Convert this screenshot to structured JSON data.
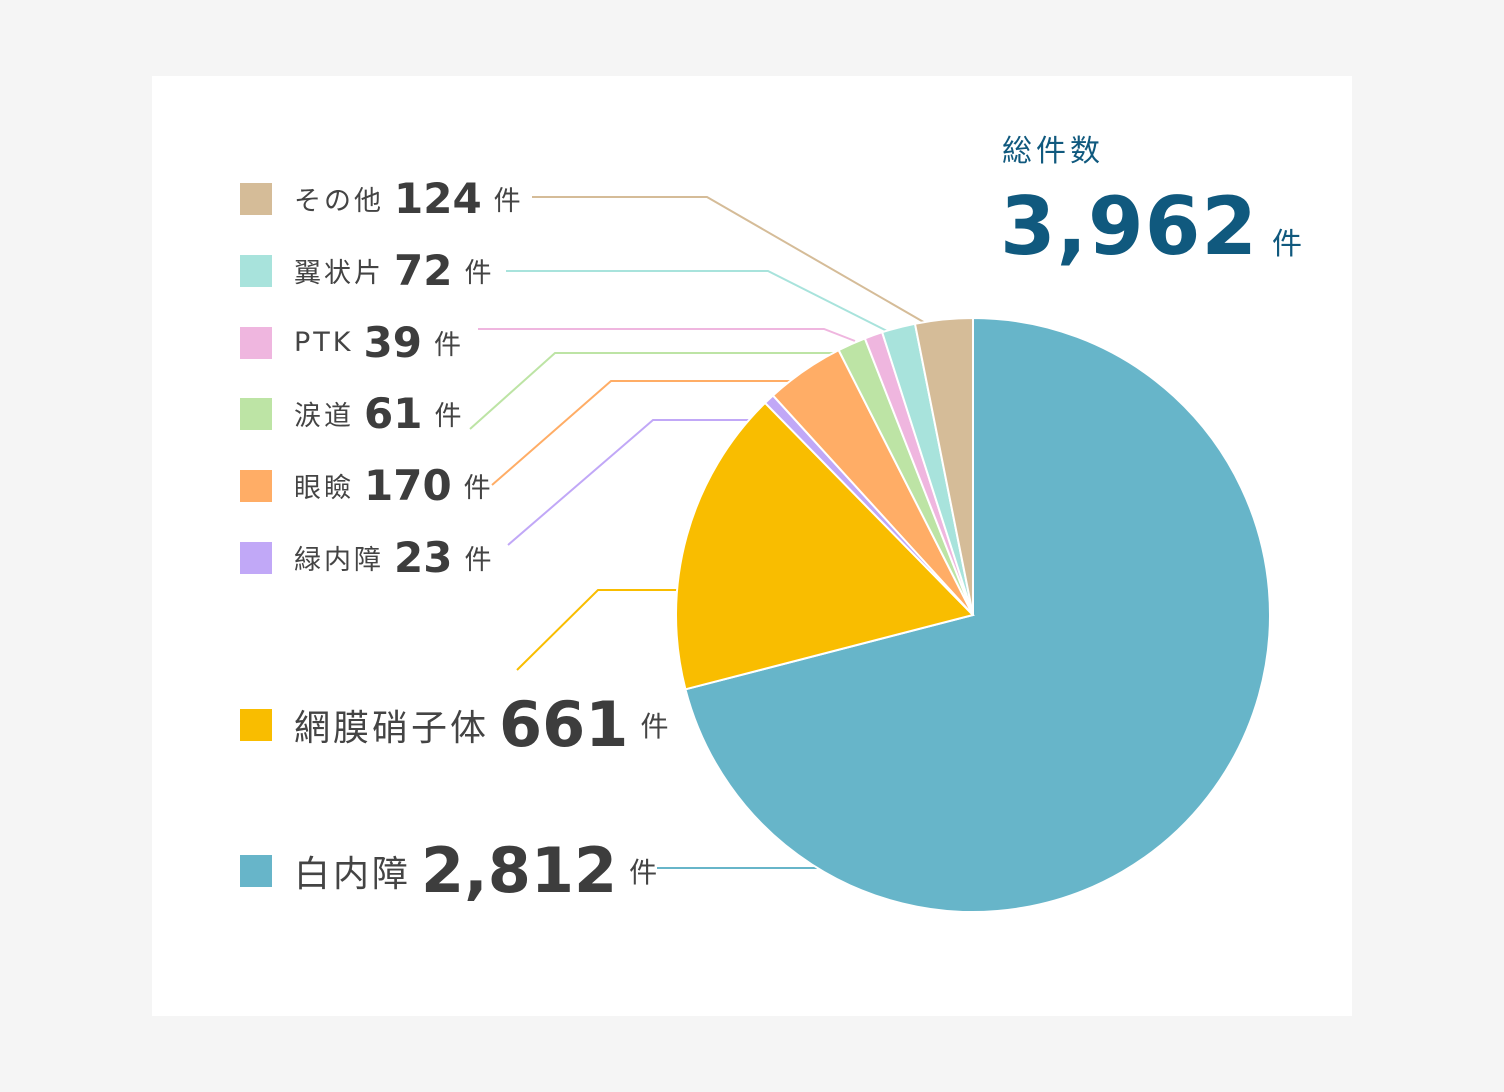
{
  "total": {
    "label": "総件数",
    "value": "3,962",
    "unit": "件"
  },
  "chart_data": {
    "type": "pie",
    "total": 3962,
    "unit": "件",
    "slices": [
      {
        "name": "白内障",
        "value": 2812,
        "display": "2,812",
        "color": "#67b5c9"
      },
      {
        "name": "網膜硝子体",
        "value": 661,
        "display": "661",
        "color": "#f9bd00"
      },
      {
        "name": "緑内障",
        "value": 23,
        "display": "23",
        "color": "#c1a8f7"
      },
      {
        "name": "眼瞼",
        "value": 170,
        "display": "170",
        "color": "#ffad66"
      },
      {
        "name": "涙道",
        "value": 61,
        "display": "61",
        "color": "#bde4a5"
      },
      {
        "name": "PTK",
        "value": 39,
        "display": "39",
        "color": "#efb6df"
      },
      {
        "name": "翼状片",
        "value": 72,
        "display": "72",
        "color": "#a8e3dc"
      },
      {
        "name": "その他",
        "value": 124,
        "display": "124",
        "color": "#d5bc98"
      }
    ]
  }
}
